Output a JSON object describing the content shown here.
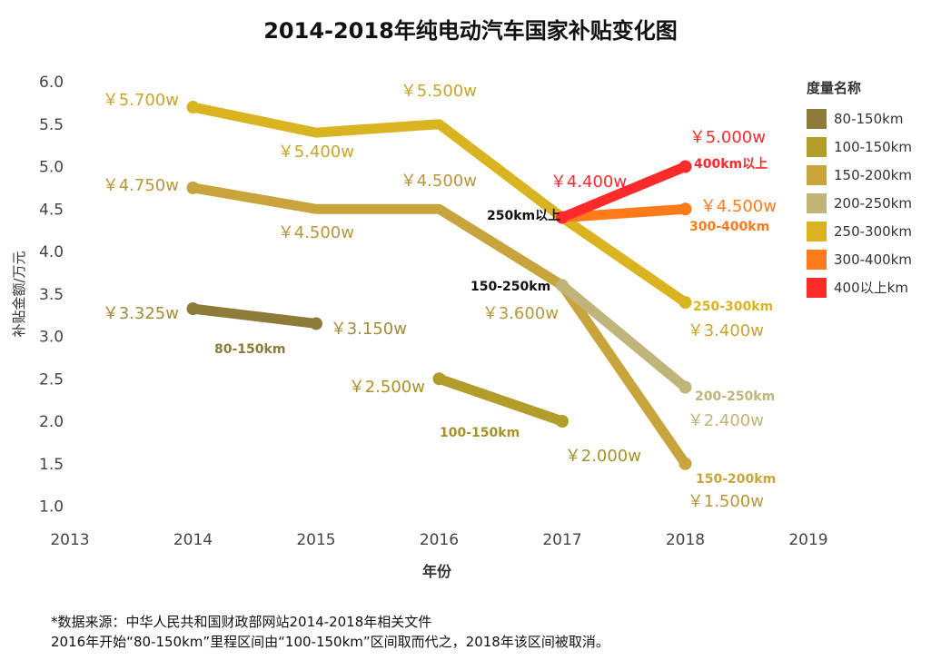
{
  "title": "2014-2018年纯电动汽车国家补贴变化图",
  "source": {
    "line1": "*数据来源：中华人民共和国财政部网站2014-2018年相关文件",
    "line2": "2016年开始“80-150km”里程区间由“100-150km”区间取而代之，2018年该区间被取消。"
  },
  "colors": {
    "80-150km": "#8d7b3a",
    "100-150km": "#b29c2a",
    "150-200km": "#c8a43c",
    "200-250km": "#bfb47a",
    "250-300km": "#d9b420",
    "300-400km": "#ff7a1a",
    "400km": "#ff2a2a"
  },
  "chart_data": {
    "type": "line",
    "xlabel": "年份",
    "ylabel": "补贴金额/万元",
    "xlim": [
      2013,
      2019
    ],
    "ylim": [
      0.9,
      6.1
    ],
    "xticks": [
      "2013",
      "2014",
      "2015",
      "2016",
      "2017",
      "2018",
      "2019"
    ],
    "yticks": [
      "1.0",
      "1.5",
      "2.0",
      "2.5",
      "3.0",
      "3.5",
      "4.0",
      "4.5",
      "5.0",
      "5.5",
      "6.0"
    ],
    "legend": {
      "title": "度量名称",
      "position": "right",
      "items": [
        "80-150km",
        "100-150km",
        "150-200km",
        "200-250km",
        "250-300km",
        "300-400km",
        "400以上km"
      ]
    },
    "series": [
      {
        "name": "80-150km",
        "color": "#8d7b3a",
        "x": [
          2014,
          2015
        ],
        "values": [
          3.325,
          3.15
        ]
      },
      {
        "name": "100-150km",
        "color": "#b29c2a",
        "x": [
          2016,
          2017
        ],
        "values": [
          2.5,
          2.0
        ]
      },
      {
        "name": "150-200km",
        "color": "#c8a43c",
        "x": [
          2014,
          2015,
          2016,
          2017,
          2018
        ],
        "values": [
          4.75,
          4.5,
          4.5,
          3.6,
          1.5
        ]
      },
      {
        "name": "200-250km",
        "color": "#bfb47a",
        "x": [
          2017,
          2018
        ],
        "values": [
          3.6,
          2.4
        ]
      },
      {
        "name": "250-300km",
        "color": "#d9b420",
        "x": [
          2014,
          2015,
          2016,
          2017,
          2018
        ],
        "values": [
          5.7,
          5.4,
          5.5,
          4.4,
          3.4
        ]
      },
      {
        "name": "300-400km",
        "color": "#ff7a1a",
        "x": [
          2017,
          2018
        ],
        "values": [
          4.4,
          4.5
        ]
      },
      {
        "name": "400以上km",
        "color": "#ff2a2a",
        "x": [
          2017,
          2018
        ],
        "values": [
          4.4,
          5.0
        ]
      }
    ],
    "value_labels": [
      {
        "text": "￥5.700w",
        "color": "#c7a62a"
      },
      {
        "text": "￥5.400w",
        "color": "#c7a62a"
      },
      {
        "text": "￥5.500w",
        "color": "#c7a62a"
      },
      {
        "text": "￥4.400w",
        "color": "#ff2a2a"
      },
      {
        "text": "￥5.000w",
        "color": "#ff2a2a"
      },
      {
        "text": "￥4.500w",
        "color": "#ff7a1a"
      },
      {
        "text": "￥3.400w",
        "color": "#c7a62a"
      },
      {
        "text": "￥4.750w",
        "color": "#b8963c"
      },
      {
        "text": "￥4.500w",
        "color": "#b8963c"
      },
      {
        "text": "￥4.500w",
        "color": "#b8963c"
      },
      {
        "text": "￥3.600w",
        "color": "#b8963c"
      },
      {
        "text": "￥1.500w",
        "color": "#b8963c"
      },
      {
        "text": "￥2.400w",
        "color": "#bfb47a"
      },
      {
        "text": "￥3.325w",
        "color": "#a08c3a"
      },
      {
        "text": "￥3.150w",
        "color": "#a08c3a"
      },
      {
        "text": "￥2.500w",
        "color": "#a89228"
      },
      {
        "text": "￥2.000w",
        "color": "#a89228"
      }
    ],
    "annotations": [
      {
        "text": "80-150km",
        "color": "#8d7b3a"
      },
      {
        "text": "100-150km",
        "color": "#a89228"
      },
      {
        "text": "150-250km",
        "color": "#111111"
      },
      {
        "text": "250km以上",
        "color": "#111111"
      },
      {
        "text": "400km以上",
        "color": "#ff2a2a"
      },
      {
        "text": "300-400km",
        "color": "#ff7a1a"
      },
      {
        "text": "250-300km",
        "color": "#d9b420"
      },
      {
        "text": "200-250km",
        "color": "#bfb47a"
      },
      {
        "text": "150-200km",
        "color": "#c8a43c"
      }
    ]
  }
}
